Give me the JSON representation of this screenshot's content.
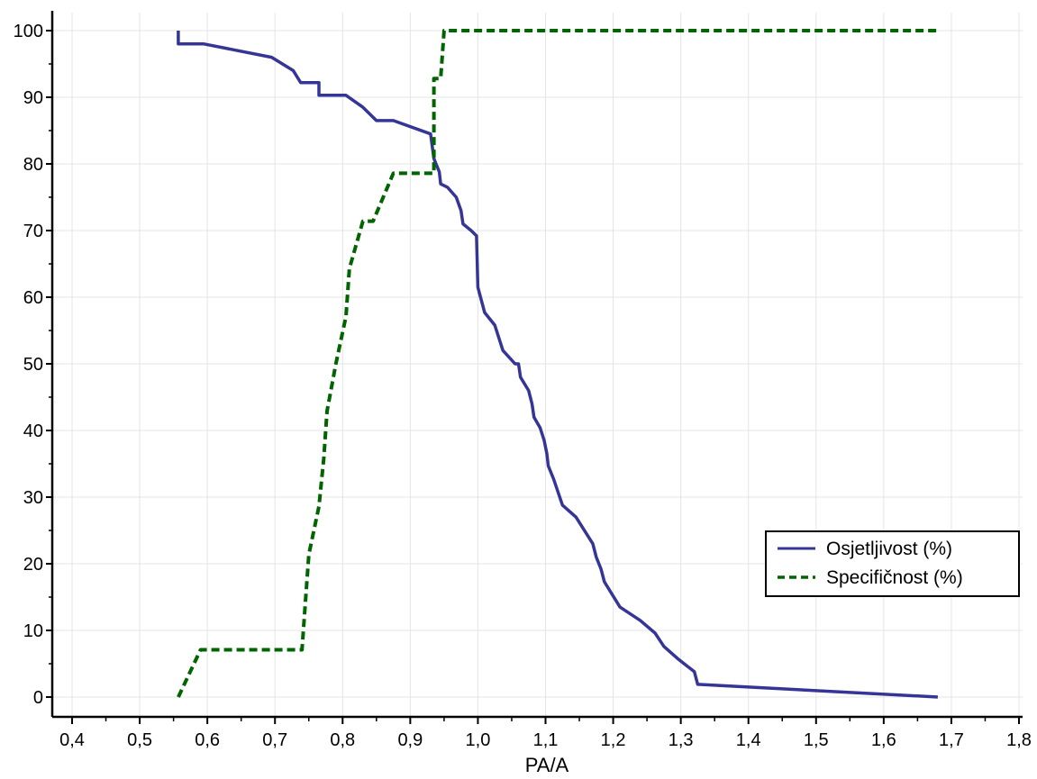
{
  "chart_data": {
    "type": "line",
    "title": "",
    "xlabel": "PA/A",
    "ylabel": "",
    "xlim": [
      0.4,
      1.8
    ],
    "ylim": [
      0,
      100
    ],
    "x_ticks": [
      "0,4",
      "0,5",
      "0,6",
      "0,7",
      "0,8",
      "0,9",
      "1,0",
      "1,1",
      "1,2",
      "1,3",
      "1,4",
      "1,5",
      "1,6",
      "1,7",
      "1,8"
    ],
    "y_ticks": [
      "0",
      "10",
      "20",
      "30",
      "40",
      "50",
      "60",
      "70",
      "80",
      "90",
      "100"
    ],
    "grid": true,
    "legend_position": "bottom-right",
    "series": [
      {
        "name": "Osjetljivost (%)",
        "color": "#353597",
        "dash": "solid",
        "points": [
          [
            0.557,
            100
          ],
          [
            0.557,
            98
          ],
          [
            0.595,
            98
          ],
          [
            0.695,
            96
          ],
          [
            0.727,
            94
          ],
          [
            0.738,
            92.2
          ],
          [
            0.765,
            92.2
          ],
          [
            0.765,
            90.3
          ],
          [
            0.805,
            90.3
          ],
          [
            0.83,
            88.5
          ],
          [
            0.85,
            86.5
          ],
          [
            0.875,
            86.5
          ],
          [
            0.93,
            84.5
          ],
          [
            0.935,
            80.8
          ],
          [
            0.943,
            78.8
          ],
          [
            0.945,
            77
          ],
          [
            0.955,
            76.5
          ],
          [
            0.968,
            75
          ],
          [
            0.975,
            73
          ],
          [
            0.978,
            71
          ],
          [
            0.99,
            70
          ],
          [
            0.998,
            69.2
          ],
          [
            1.0,
            61.5
          ],
          [
            1.01,
            57.7
          ],
          [
            1.025,
            55.8
          ],
          [
            1.037,
            52
          ],
          [
            1.055,
            50
          ],
          [
            1.06,
            50
          ],
          [
            1.063,
            48
          ],
          [
            1.075,
            46
          ],
          [
            1.08,
            44
          ],
          [
            1.083,
            42
          ],
          [
            1.092,
            40.4
          ],
          [
            1.098,
            38.5
          ],
          [
            1.102,
            36.5
          ],
          [
            1.104,
            34.7
          ],
          [
            1.112,
            32.7
          ],
          [
            1.125,
            28.8
          ],
          [
            1.145,
            27
          ],
          [
            1.17,
            23
          ],
          [
            1.175,
            21
          ],
          [
            1.182,
            19.2
          ],
          [
            1.187,
            17.3
          ],
          [
            1.21,
            13.5
          ],
          [
            1.24,
            11.5
          ],
          [
            1.262,
            9.6
          ],
          [
            1.275,
            7.6
          ],
          [
            1.295,
            5.8
          ],
          [
            1.32,
            3.8
          ],
          [
            1.325,
            1.9
          ],
          [
            1.68,
            0
          ]
        ]
      },
      {
        "name": "Specifičnost (%)",
        "color": "#006400",
        "dash": "dashed",
        "points": [
          [
            0.557,
            0
          ],
          [
            0.59,
            7.1
          ],
          [
            0.74,
            7.1
          ],
          [
            0.745,
            14.3
          ],
          [
            0.75,
            21.4
          ],
          [
            0.765,
            28.6
          ],
          [
            0.772,
            35.7
          ],
          [
            0.777,
            42.9
          ],
          [
            0.79,
            50
          ],
          [
            0.805,
            57.1
          ],
          [
            0.81,
            64.3
          ],
          [
            0.83,
            71.4
          ],
          [
            0.845,
            71.4
          ],
          [
            0.875,
            78.6
          ],
          [
            0.935,
            78.6
          ],
          [
            0.935,
            92.8
          ],
          [
            0.945,
            92.8
          ],
          [
            0.95,
            100
          ],
          [
            1.68,
            100
          ]
        ]
      }
    ]
  }
}
